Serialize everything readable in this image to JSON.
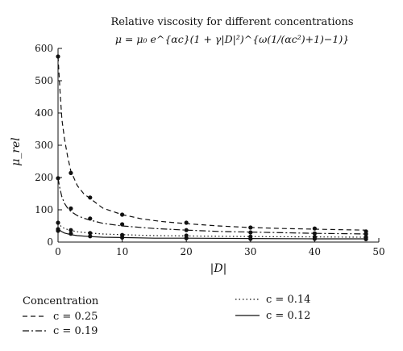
{
  "chart_data": {
    "type": "line",
    "title": "Relative viscosity for different concentrations",
    "formula": "μ = μ₀ e^{αc}(1 + γ|D|²)^{ω(1/(αc²)+1)−1)}",
    "xlabel": "|D|",
    "ylabel": "μ_rel",
    "xlim": [
      0,
      50
    ],
    "ylim": [
      0,
      600
    ],
    "xticks": [
      0,
      10,
      20,
      30,
      40,
      50
    ],
    "yticks": [
      0,
      100,
      200,
      300,
      400,
      500,
      600
    ],
    "grid": false,
    "legend": {
      "title": "Concentration",
      "placement": "bottom",
      "entries": [
        {
          "label": "c = 0.25",
          "style": "dashed"
        },
        {
          "label": "c = 0.19",
          "style": "dashdot"
        },
        {
          "label": "c = 0.14",
          "style": "dotted"
        },
        {
          "label": "c = 0.12",
          "style": "solid"
        }
      ]
    },
    "series": [
      {
        "name": "c = 0.25",
        "style": "dashed",
        "line": {
          "x": [
            0,
            0.3,
            0.6,
            1,
            1.5,
            2,
            3,
            4,
            5,
            7,
            10,
            13,
            16,
            20,
            25,
            30,
            35,
            40,
            45,
            48
          ],
          "y": [
            575,
            470,
            380,
            320,
            265,
            220,
            175,
            150,
            135,
            105,
            85,
            72,
            64,
            57,
            50,
            45,
            42,
            40,
            38,
            37
          ]
        },
        "points": {
          "x": [
            0,
            0,
            2,
            5,
            10,
            20,
            30,
            40,
            48
          ],
          "y": [
            575,
            198,
            214,
            138,
            85,
            60,
            45,
            42,
            33
          ]
        }
      },
      {
        "name": "c = 0.19",
        "style": "dashdot",
        "line": {
          "x": [
            0,
            0.3,
            0.6,
            1,
            1.5,
            2,
            3,
            4,
            5,
            7,
            10,
            15,
            20,
            25,
            30,
            35,
            40,
            45,
            48
          ],
          "y": [
            198,
            165,
            140,
            120,
            105,
            95,
            82,
            74,
            68,
            58,
            50,
            42,
            37,
            33,
            31,
            29,
            27,
            26,
            25
          ]
        },
        "points": {
          "x": [
            0,
            2,
            5,
            10,
            20,
            30,
            40,
            48
          ],
          "y": [
            60,
            104,
            73,
            55,
            37,
            30,
            27,
            25
          ]
        }
      },
      {
        "name": "c = 0.14",
        "style": "dotted",
        "line": {
          "x": [
            0,
            0.5,
            1,
            2,
            3,
            5,
            7,
            10,
            15,
            20,
            30,
            40,
            48
          ],
          "y": [
            60,
            48,
            42,
            36,
            32,
            28,
            25,
            23,
            20,
            19,
            17,
            16,
            15
          ]
        },
        "points": {
          "x": [
            0,
            2,
            5,
            10,
            20,
            30,
            40,
            48
          ],
          "y": [
            40,
            37,
            28,
            22,
            20,
            17,
            16,
            15
          ]
        }
      },
      {
        "name": "c = 0.12",
        "style": "solid",
        "line": {
          "x": [
            0,
            0.5,
            1,
            2,
            3,
            5,
            7,
            10,
            15,
            20,
            30,
            40,
            48
          ],
          "y": [
            42,
            33,
            28,
            23,
            20,
            17,
            15,
            14,
            12,
            12,
            11,
            10,
            10
          ]
        },
        "points": {
          "x": [
            0,
            2,
            5,
            10,
            20,
            30,
            40,
            48
          ],
          "y": [
            35,
            26,
            18,
            14,
            12,
            10,
            10,
            9
          ]
        }
      }
    ]
  }
}
